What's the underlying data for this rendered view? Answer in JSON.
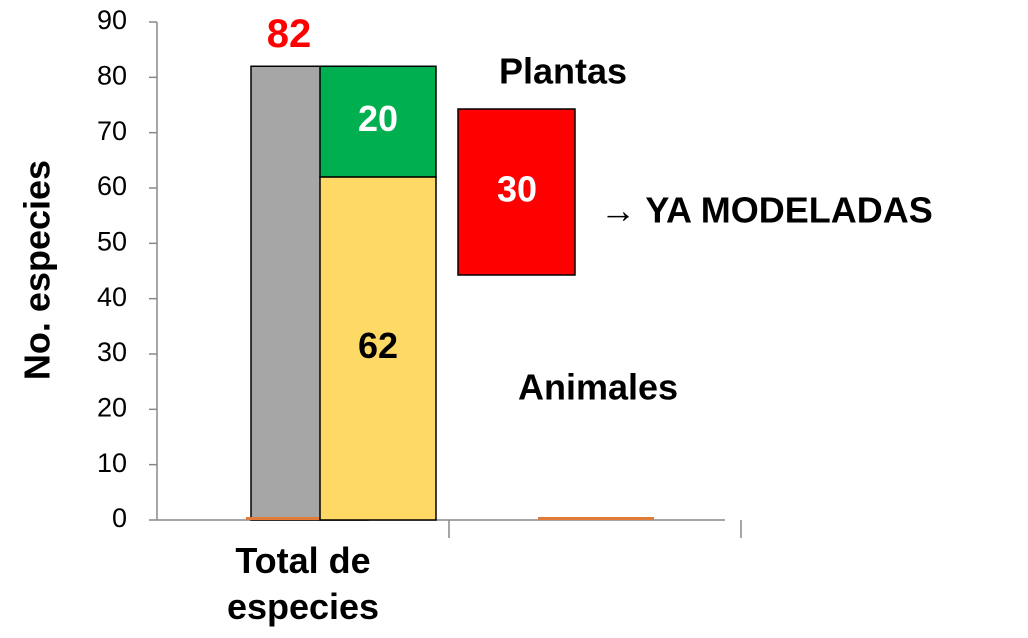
{
  "chart_data": {
    "type": "bar",
    "ylabel": "No. especies",
    "categories": [
      "Total de especies",
      null
    ],
    "ylim": [
      0,
      90
    ],
    "yticks": [
      0,
      10,
      20,
      30,
      40,
      50,
      60,
      70,
      80,
      90
    ],
    "series": [
      {
        "color": "#a6a6a6",
        "label_color": "#ff0000",
        "values": [
          82,
          null
        ]
      },
      {
        "color": "#e07b39",
        "values": [
          0,
          0
        ]
      }
    ],
    "stack": [
      {
        "name": "Animales",
        "color": "#ffd966",
        "label_color": "#000000",
        "values": [
          62
        ]
      },
      {
        "name": "Plantas",
        "color": "#00b050",
        "label_color": "#ffffff",
        "values": [
          20
        ]
      }
    ],
    "callout": {
      "name": "→ YA MODELADAS",
      "color": "#ff0000",
      "label_color": "#ffffff",
      "value": 30
    }
  }
}
